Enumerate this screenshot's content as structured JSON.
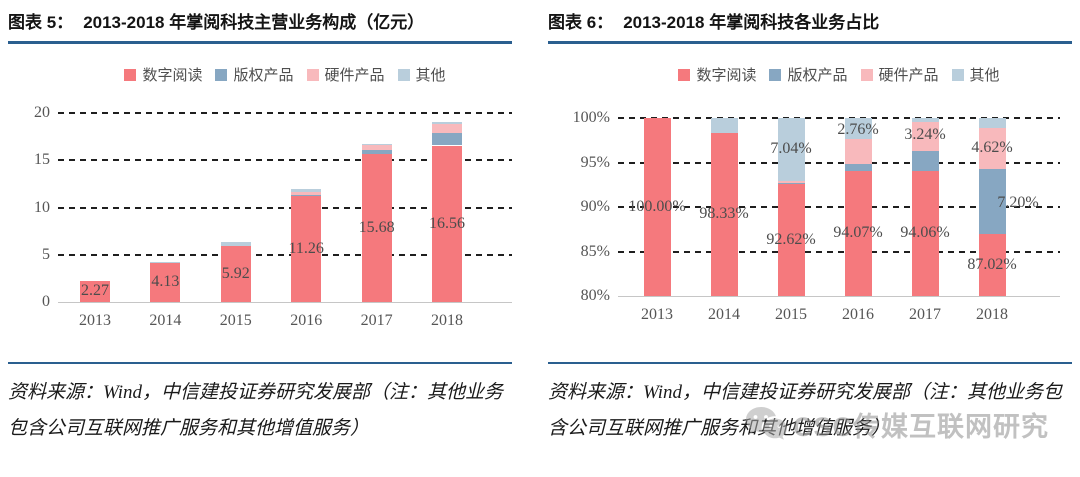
{
  "colors": {
    "rule_blue": "#2A5F8F",
    "series": {
      "digital_reading": "#F5797D",
      "copyright_products": "#87A7C2",
      "hardware_products": "#F8B9BC",
      "other": "#B9CEDC"
    }
  },
  "figures": [
    {
      "figure_label": "图表 5：",
      "title": "2013-2018 年掌阅科技主营业务构成（亿元）",
      "source_note": "资料来源：Wind，中信建投证券研究发展部（注：其他业务包含公司互联网推广服务和其他增值服务）"
    },
    {
      "figure_label": "图表 6：",
      "title": "2013-2018 年掌阅科技各业务占比",
      "source_note": "资料来源：Wind，中信建投证券研究发展部（注：其他业务包含公司互联网推广服务和其他增值服务）"
    }
  ],
  "watermark": {
    "icon": "wechat-icon",
    "text": "CSC传媒互联网研究"
  },
  "chart_data": [
    {
      "type": "bar",
      "stacked": true,
      "title": "2013-2018 年掌阅科技主营业务构成（亿元）",
      "xlabel": "",
      "ylabel": "",
      "unit": "亿元",
      "ylim": [
        0,
        20
      ],
      "yticks": [
        "0",
        "5",
        "10",
        "15",
        "20"
      ],
      "grid": "horizontal-dashed",
      "legend_position": "top-center",
      "categories": [
        "2013",
        "2014",
        "2015",
        "2016",
        "2017",
        "2018"
      ],
      "series": [
        {
          "name": "数字阅读",
          "key": "digital-reading",
          "color": "#F5797D",
          "values": [
            2.27,
            4.13,
            5.92,
            11.26,
            15.68,
            16.56
          ]
        },
        {
          "name": "版权产品",
          "key": "copyright-products",
          "color": "#87A7C2",
          "values": [
            0,
            0,
            0.01,
            0.09,
            0.38,
            1.37
          ]
        },
        {
          "name": "硬件产品",
          "key": "hardware-products",
          "color": "#F8B9BC",
          "values": [
            0,
            0,
            0.02,
            0.33,
            0.54,
            0.88
          ]
        },
        {
          "name": "其他",
          "key": "other",
          "color": "#B9CEDC",
          "values": [
            0,
            0.07,
            0.45,
            0.29,
            0.07,
            0.22
          ]
        }
      ],
      "bar_labels": [
        "2.27",
        "4.13",
        "5.92",
        "11.26",
        "15.68",
        "16.56"
      ],
      "segment_labels": []
    },
    {
      "type": "bar",
      "stacked": true,
      "title": "2013-2018 年掌阅科技各业务占比",
      "xlabel": "",
      "ylabel": "",
      "unit": "%",
      "ylim": [
        80,
        100
      ],
      "yticks": [
        "80%",
        "85%",
        "90%",
        "95%",
        "100%"
      ],
      "grid": "horizontal-dashed",
      "legend_position": "top-center",
      "categories": [
        "2013",
        "2014",
        "2015",
        "2016",
        "2017",
        "2018"
      ],
      "series": [
        {
          "name": "数字阅读",
          "key": "digital-reading",
          "color": "#F5797D",
          "values": [
            100.0,
            98.33,
            92.62,
            94.07,
            94.06,
            87.02
          ]
        },
        {
          "name": "版权产品",
          "key": "copyright-products",
          "color": "#87A7C2",
          "values": [
            0,
            0,
            0.1,
            0.77,
            2.26,
            7.2
          ]
        },
        {
          "name": "硬件产品",
          "key": "hardware-products",
          "color": "#F8B9BC",
          "values": [
            0,
            0,
            0.24,
            2.76,
            3.24,
            4.62
          ]
        },
        {
          "name": "其他",
          "key": "other",
          "color": "#B9CEDC",
          "values": [
            0,
            1.67,
            7.04,
            2.4,
            0.44,
            1.16
          ]
        }
      ],
      "bar_labels": [
        "100.00%",
        "98.33%",
        "92.62%",
        "94.07%",
        "94.06%",
        "87.02%"
      ],
      "segment_labels": [
        {
          "category": "2015",
          "text": "7.04%",
          "y": 96.5,
          "dx": 0
        },
        {
          "category": "2016",
          "text": "2.76%",
          "y": 98.6,
          "dx": 0
        },
        {
          "category": "2017",
          "text": "3.24%",
          "y": 98.1,
          "dx": 0
        },
        {
          "category": "2018",
          "text": "4.62%",
          "y": 96.6,
          "dx": 0
        },
        {
          "category": "2018",
          "text": "7.20%",
          "y": 90.4,
          "dx": 26
        }
      ]
    }
  ]
}
